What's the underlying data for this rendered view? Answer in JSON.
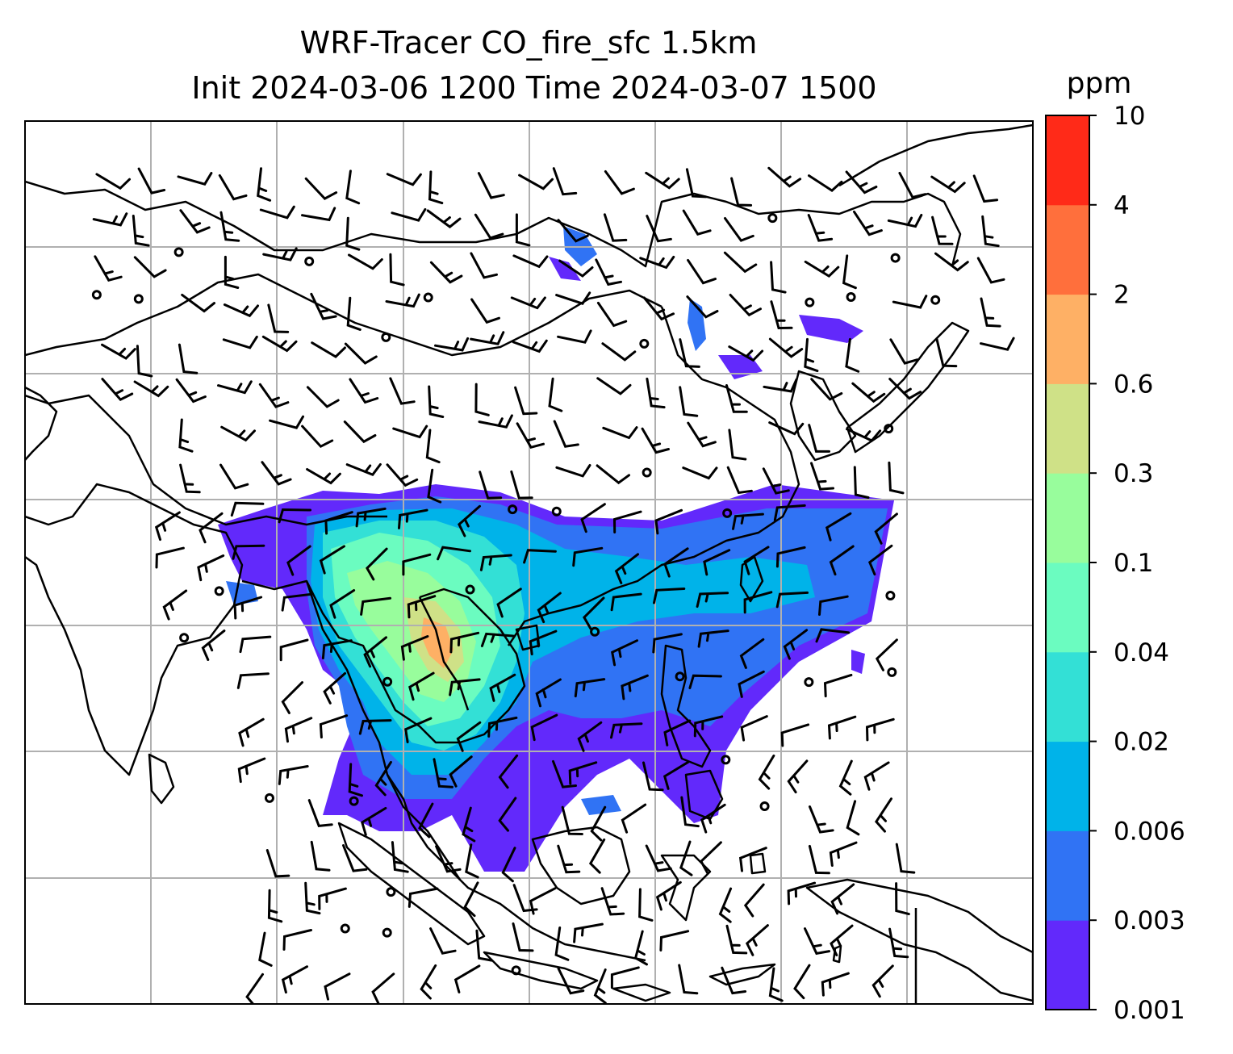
{
  "title": {
    "line1": "WRF-Tracer CO_fire_sfc 1.5km",
    "line2": "Init 2024-03-06 1200 Time 2024-03-07 1500"
  },
  "colorbar": {
    "label": "ppm",
    "levels": [
      "0.001",
      "0.003",
      "0.006",
      "0.02",
      "0.04",
      "0.1",
      "0.3",
      "0.6",
      "2",
      "4",
      "10"
    ],
    "colors": [
      "#6229fb",
      "#3073f4",
      "#00b3e9",
      "#33e0d6",
      "#6bfcc0",
      "#98fd9c",
      "#cfe187",
      "#feb065",
      "#ff6f3c",
      "#ff2a18"
    ]
  },
  "map": {
    "variable": "CO_fire_sfc",
    "overlay": "wind-barbs",
    "gridlines": true,
    "coastlines": true,
    "borders": true
  }
}
